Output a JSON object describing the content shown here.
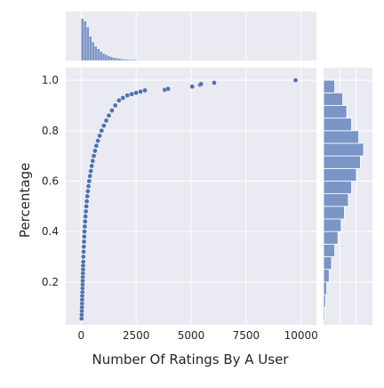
{
  "chart_data": {
    "type": "scatter",
    "subtype": "jointplot with marginal histograms",
    "xlabel": "Number Of Ratings By A User",
    "ylabel": "Percentage",
    "xlim": [
      -700,
      10700
    ],
    "ylim": [
      0.03,
      1.05
    ],
    "xticks": [
      0,
      2500,
      5000,
      7500,
      10000
    ],
    "xtick_labels": [
      "0",
      "2500",
      "5000",
      "7500",
      "10000"
    ],
    "yticks": [
      0.2,
      0.4,
      0.6,
      0.8,
      1.0
    ],
    "ytick_labels": [
      "0.2",
      "0.4",
      "0.6",
      "0.8",
      "1.0"
    ],
    "grid": true,
    "style": "seaborn darkgrid",
    "colors": {
      "panel": "#eaeaf2",
      "point": "#4c72b0",
      "hist": "#7a95c6",
      "grid": "#ffffff"
    },
    "points": [
      [
        20,
        0.055
      ],
      [
        25,
        0.07
      ],
      [
        30,
        0.085
      ],
      [
        35,
        0.1
      ],
      [
        40,
        0.115
      ],
      [
        45,
        0.13
      ],
      [
        50,
        0.145
      ],
      [
        55,
        0.16
      ],
      [
        60,
        0.175
      ],
      [
        65,
        0.19
      ],
      [
        70,
        0.205
      ],
      [
        75,
        0.22
      ],
      [
        80,
        0.235
      ],
      [
        85,
        0.25
      ],
      [
        90,
        0.265
      ],
      [
        95,
        0.28
      ],
      [
        100,
        0.3
      ],
      [
        110,
        0.32
      ],
      [
        120,
        0.34
      ],
      [
        130,
        0.36
      ],
      [
        140,
        0.38
      ],
      [
        150,
        0.4
      ],
      [
        165,
        0.42
      ],
      [
        180,
        0.44
      ],
      [
        195,
        0.46
      ],
      [
        215,
        0.48
      ],
      [
        235,
        0.5
      ],
      [
        255,
        0.52
      ],
      [
        280,
        0.54
      ],
      [
        305,
        0.56
      ],
      [
        335,
        0.58
      ],
      [
        365,
        0.6
      ],
      [
        400,
        0.62
      ],
      [
        440,
        0.64
      ],
      [
        480,
        0.66
      ],
      [
        525,
        0.68
      ],
      [
        575,
        0.7
      ],
      [
        630,
        0.72
      ],
      [
        690,
        0.74
      ],
      [
        760,
        0.76
      ],
      [
        840,
        0.78
      ],
      [
        930,
        0.8
      ],
      [
        1030,
        0.82
      ],
      [
        1140,
        0.84
      ],
      [
        1260,
        0.86
      ],
      [
        1400,
        0.88
      ],
      [
        1550,
        0.9
      ],
      [
        1720,
        0.92
      ],
      [
        1900,
        0.93
      ],
      [
        2100,
        0.94
      ],
      [
        2300,
        0.945
      ],
      [
        2500,
        0.95
      ],
      [
        2700,
        0.955
      ],
      [
        2900,
        0.96
      ],
      [
        3800,
        0.962
      ],
      [
        3950,
        0.966
      ],
      [
        5050,
        0.975
      ],
      [
        5400,
        0.982
      ],
      [
        5450,
        0.985
      ],
      [
        6050,
        0.99
      ],
      [
        9750,
        1.0
      ]
    ],
    "x_hist": {
      "bin_edges": [
        0,
        120,
        240,
        360,
        480,
        600,
        720,
        840,
        960,
        1080,
        1200,
        1320,
        1440,
        1560,
        1680,
        1800,
        1920,
        2040,
        2160,
        2280,
        2400,
        2520,
        2640,
        2760,
        2880,
        3000,
        3120,
        3240,
        3360,
        3480,
        3600,
        3720,
        3840,
        3960,
        4080,
        4200,
        4320,
        4440,
        4560,
        4680,
        4800,
        4920,
        5040,
        5160,
        5280,
        5400,
        5520,
        5640,
        5760,
        5880,
        6000
      ],
      "counts": [
        100,
        94,
        80,
        58,
        44,
        34,
        28,
        22,
        17,
        14,
        11,
        9,
        7,
        6,
        5,
        4,
        3,
        3,
        2,
        2,
        2,
        1,
        1,
        1,
        1,
        1,
        1,
        1,
        0,
        1,
        0,
        0,
        1,
        1,
        0,
        0,
        0,
        0,
        0,
        0,
        0,
        0,
        1,
        0,
        0,
        1,
        1,
        0,
        0,
        0
      ]
    },
    "y_hist": {
      "bin_edges": [
        0.05,
        0.1,
        0.15,
        0.2,
        0.25,
        0.3,
        0.35,
        0.4,
        0.45,
        0.5,
        0.55,
        0.6,
        0.65,
        0.7,
        0.75,
        0.8,
        0.85,
        0.9,
        0.95,
        1.0
      ],
      "counts": [
        3,
        5,
        8,
        14,
        20,
        28,
        36,
        44,
        52,
        62,
        70,
        82,
        92,
        100,
        88,
        70,
        58,
        48,
        28
      ]
    }
  }
}
